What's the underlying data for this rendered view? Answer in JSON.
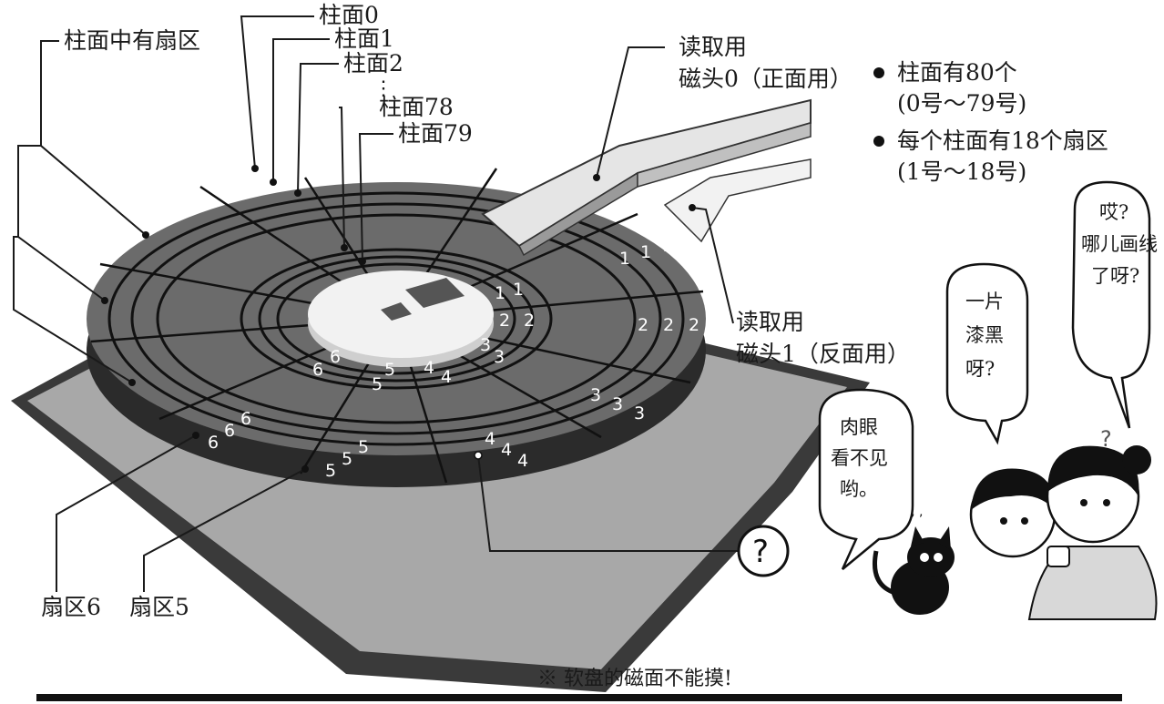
{
  "labels": {
    "cyl0": "柱面0",
    "cyl1": "柱面1",
    "cyl2": "柱面2",
    "dots": "⋮",
    "cyl78": "柱面78",
    "cyl79": "柱面79",
    "sectors_in_cyl": "柱面中有扇区",
    "head0_line1": "读取用",
    "head0_line2": "磁头0（正面用）",
    "head1_line1": "读取用",
    "head1_line2": "磁头1（反面用）",
    "sector6": "扇区6",
    "sector5": "扇区5",
    "question": "?"
  },
  "bullets": [
    {
      "line1": "柱面有80个",
      "line2": "(0号～79号)"
    },
    {
      "line1": "每个柱面有18个扇区",
      "line2": "(1号～18号)"
    }
  ],
  "bubbles": {
    "b1": [
      "哎?",
      "哪儿画线",
      "了呀?"
    ],
    "b2": [
      "一片",
      "漆黑",
      "呀?"
    ],
    "b3": [
      "肉眼",
      "看不见",
      "哟。"
    ]
  },
  "sector_numbers": {
    "s1": "1",
    "s2": "2",
    "s3": "3",
    "s4": "4",
    "s5": "5",
    "s6": "6"
  },
  "footer_note": "※ 软盘的磁面不能摸!"
}
